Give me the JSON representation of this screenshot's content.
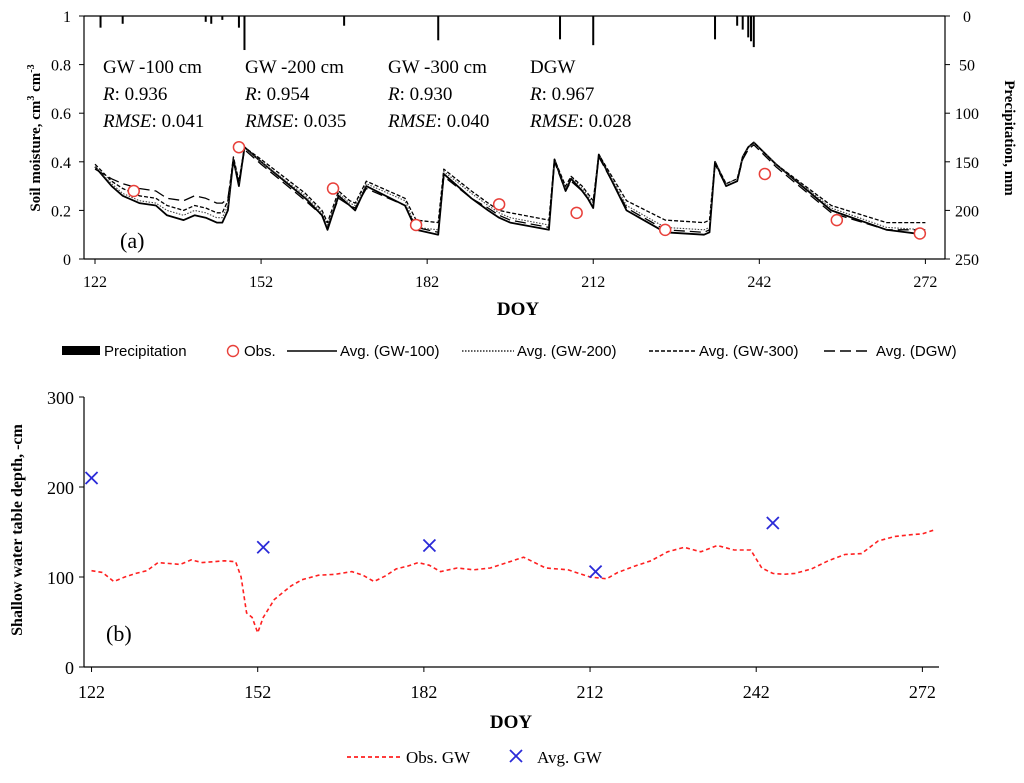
{
  "chart_data": [
    {
      "id": "a",
      "type": "line",
      "panel_label": "(a)",
      "xlabel": "DOY",
      "ylabel": "Soil moisture, cm",
      "ylabel_sup1": "3",
      "ylabel_mid": " cm",
      "ylabel_sup2": "-3",
      "y2label": "Precipitation, mm",
      "xlim": [
        122,
        275
      ],
      "ylim": [
        0,
        1
      ],
      "y2lim": [
        0,
        250
      ],
      "y2_inverted": true,
      "xticks": [
        "122",
        "152",
        "182",
        "212",
        "242",
        "272"
      ],
      "yticks": [
        "0",
        "0.2",
        "0.4",
        "0.6",
        "0.8",
        "1"
      ],
      "y2ticks": [
        "0",
        "50",
        "100",
        "150",
        "200",
        "250"
      ],
      "grid": false,
      "annotations": [
        {
          "title": "GW -100 cm",
          "r_label": "R",
          "r_value": ": 0.936",
          "rmse_label": "RMSE",
          "rmse_value": ": 0.041"
        },
        {
          "title": "GW -200 cm",
          "r_label": "R",
          "r_value": ": 0.954",
          "rmse_label": "RMSE",
          "rmse_value": ": 0.035"
        },
        {
          "title": "GW -300 cm",
          "r_label": "R",
          "r_value": ": 0.930",
          "rmse_label": "RMSE",
          "rmse_value": ": 0.040"
        },
        {
          "title": "DGW",
          "r_label": "R",
          "r_value": ": 0.967",
          "rmse_label": "RMSE",
          "rmse_value": ": 0.028"
        }
      ],
      "legend": {
        "placement": "bottom",
        "entries": [
          "Precipitation",
          "Obs.",
          "Avg. (GW-100)",
          "Avg. (GW-200)",
          "Avg. (GW-300)",
          "Avg. (DGW)"
        ]
      },
      "precipitation": {
        "name": "Precipitation",
        "x": [
          123,
          127,
          142,
          143,
          145,
          148,
          149,
          167,
          184,
          206,
          212,
          234,
          238,
          239,
          240,
          240.5,
          241
        ],
        "y": [
          12,
          8,
          6,
          8,
          4,
          12,
          35,
          10,
          25,
          24,
          30,
          24,
          10,
          14,
          22,
          26,
          32
        ]
      },
      "observations": {
        "name": "Obs.",
        "x": [
          129,
          148,
          165,
          180,
          195,
          209,
          225,
          243,
          256,
          271
        ],
        "y": [
          0.28,
          0.46,
          0.29,
          0.14,
          0.225,
          0.19,
          0.12,
          0.35,
          0.16,
          0.105
        ]
      },
      "series": [
        {
          "name": "Avg. (GW-100)",
          "x": [
            122,
            125,
            127,
            130,
            133,
            135,
            138,
            140,
            142,
            144,
            145,
            146,
            147,
            148,
            149,
            152,
            160,
            163,
            164,
            166,
            168,
            169,
            171,
            178,
            180,
            184,
            185,
            190,
            193,
            195,
            197,
            204,
            205,
            207,
            208,
            210,
            211,
            212,
            213,
            218,
            225,
            232,
            233,
            234,
            236,
            238,
            239,
            240,
            241,
            245,
            255,
            265,
            272
          ],
          "y": [
            0.38,
            0.3,
            0.26,
            0.23,
            0.22,
            0.18,
            0.16,
            0.18,
            0.17,
            0.15,
            0.15,
            0.2,
            0.41,
            0.3,
            0.46,
            0.4,
            0.25,
            0.18,
            0.12,
            0.26,
            0.22,
            0.2,
            0.3,
            0.22,
            0.12,
            0.1,
            0.35,
            0.25,
            0.2,
            0.17,
            0.15,
            0.12,
            0.41,
            0.28,
            0.33,
            0.28,
            0.25,
            0.21,
            0.43,
            0.2,
            0.11,
            0.1,
            0.11,
            0.4,
            0.3,
            0.32,
            0.42,
            0.46,
            0.48,
            0.39,
            0.2,
            0.12,
            0.1
          ]
        },
        {
          "name": "Avg. (GW-200)",
          "x": [
            122,
            125,
            127,
            130,
            133,
            135,
            138,
            140,
            142,
            144,
            145,
            146,
            147,
            148,
            149,
            152,
            160,
            163,
            164,
            166,
            168,
            169,
            171,
            178,
            180,
            184,
            185,
            190,
            193,
            195,
            197,
            204,
            205,
            207,
            208,
            210,
            211,
            212,
            213,
            218,
            225,
            232,
            233,
            234,
            236,
            238,
            239,
            240,
            241,
            245,
            255,
            265,
            272
          ],
          "y": [
            0.38,
            0.31,
            0.27,
            0.24,
            0.23,
            0.2,
            0.18,
            0.2,
            0.19,
            0.17,
            0.17,
            0.22,
            0.41,
            0.31,
            0.46,
            0.4,
            0.26,
            0.19,
            0.14,
            0.27,
            0.23,
            0.22,
            0.31,
            0.24,
            0.13,
            0.12,
            0.36,
            0.27,
            0.22,
            0.19,
            0.17,
            0.14,
            0.41,
            0.29,
            0.34,
            0.29,
            0.26,
            0.23,
            0.43,
            0.22,
            0.13,
            0.12,
            0.13,
            0.4,
            0.31,
            0.33,
            0.42,
            0.46,
            0.48,
            0.39,
            0.21,
            0.13,
            0.12
          ]
        },
        {
          "name": "Avg. (GW-300)",
          "x": [
            122,
            125,
            127,
            130,
            133,
            135,
            138,
            140,
            142,
            144,
            145,
            146,
            147,
            148,
            149,
            152,
            160,
            163,
            164,
            166,
            168,
            169,
            171,
            178,
            180,
            184,
            185,
            190,
            193,
            195,
            197,
            204,
            205,
            207,
            208,
            210,
            211,
            212,
            213,
            218,
            225,
            232,
            233,
            234,
            236,
            238,
            239,
            240,
            241,
            245,
            255,
            265,
            272
          ],
          "y": [
            0.39,
            0.32,
            0.29,
            0.26,
            0.25,
            0.22,
            0.2,
            0.22,
            0.21,
            0.19,
            0.19,
            0.24,
            0.42,
            0.32,
            0.46,
            0.41,
            0.27,
            0.2,
            0.15,
            0.28,
            0.24,
            0.23,
            0.32,
            0.25,
            0.16,
            0.15,
            0.37,
            0.28,
            0.23,
            0.2,
            0.19,
            0.16,
            0.41,
            0.3,
            0.34,
            0.3,
            0.27,
            0.24,
            0.43,
            0.24,
            0.16,
            0.15,
            0.16,
            0.4,
            0.31,
            0.33,
            0.42,
            0.46,
            0.48,
            0.39,
            0.22,
            0.15,
            0.15
          ]
        },
        {
          "name": "Avg. (DGW)",
          "x": [
            122,
            125,
            127,
            130,
            133,
            135,
            138,
            140,
            142,
            144,
            145,
            146,
            147,
            148,
            149,
            152,
            160,
            163,
            164,
            166,
            168,
            169,
            171,
            178,
            180,
            184,
            185,
            190,
            193,
            195,
            197,
            204,
            205,
            207,
            208,
            210,
            211,
            212,
            213,
            218,
            225,
            232,
            233,
            234,
            236,
            238,
            239,
            240,
            241,
            245,
            255,
            265,
            272
          ],
          "y": [
            0.37,
            0.33,
            0.31,
            0.29,
            0.28,
            0.25,
            0.24,
            0.26,
            0.25,
            0.23,
            0.23,
            0.25,
            0.4,
            0.31,
            0.45,
            0.39,
            0.24,
            0.18,
            0.13,
            0.25,
            0.22,
            0.21,
            0.29,
            0.22,
            0.13,
            0.11,
            0.34,
            0.25,
            0.21,
            0.18,
            0.16,
            0.13,
            0.4,
            0.28,
            0.32,
            0.28,
            0.25,
            0.22,
            0.42,
            0.21,
            0.12,
            0.11,
            0.12,
            0.39,
            0.3,
            0.32,
            0.41,
            0.45,
            0.47,
            0.38,
            0.19,
            0.12,
            0.12
          ]
        }
      ]
    },
    {
      "id": "b",
      "type": "line",
      "panel_label": "(b)",
      "xlabel": "DOY",
      "ylabel": "Shallow water table depth, -cm",
      "xlim": [
        121,
        275
      ],
      "ylim": [
        0,
        300
      ],
      "xticks": [
        "122",
        "152",
        "182",
        "212",
        "242",
        "272"
      ],
      "yticks": [
        "0",
        "100",
        "200",
        "300"
      ],
      "grid": false,
      "legend": {
        "placement": "bottom",
        "entries": [
          "Obs. GW",
          "Avg. GW"
        ]
      },
      "series": [
        {
          "name": "Obs. GW",
          "x": [
            122,
            124,
            126,
            128,
            130,
            132,
            134,
            136,
            138,
            140,
            142,
            144,
            146,
            148,
            149,
            150,
            151,
            152,
            153,
            155,
            158,
            160,
            163,
            166,
            169,
            171,
            173,
            175,
            177,
            179,
            181,
            183,
            185,
            188,
            191,
            194,
            197,
            200,
            204,
            208,
            212,
            215,
            217,
            220,
            223,
            226,
            229,
            232,
            235,
            238,
            241,
            243,
            245,
            247,
            249,
            252,
            255,
            258,
            261,
            264,
            267,
            270,
            272,
            274
          ],
          "y": [
            107,
            105,
            95,
            100,
            104,
            107,
            116,
            115,
            114,
            119,
            116,
            117,
            118,
            117,
            100,
            60,
            55,
            38,
            55,
            75,
            90,
            97,
            102,
            103,
            106,
            102,
            95,
            101,
            109,
            112,
            116,
            113,
            106,
            110,
            108,
            110,
            116,
            122,
            110,
            108,
            100,
            98,
            105,
            112,
            118,
            128,
            133,
            128,
            135,
            130,
            130,
            110,
            104,
            103,
            104,
            109,
            118,
            125,
            126,
            140,
            145,
            147,
            148,
            152
          ]
        },
        {
          "name": "Avg. GW",
          "style": "markers",
          "x": [
            122,
            153,
            183,
            213,
            245
          ],
          "y": [
            210,
            133,
            135,
            106,
            160
          ]
        }
      ]
    }
  ],
  "colors": {
    "axis": "#000000",
    "observation": "#e8403a",
    "obs_gw": "#ff2020",
    "avg_gw": "#2a2ad8"
  }
}
